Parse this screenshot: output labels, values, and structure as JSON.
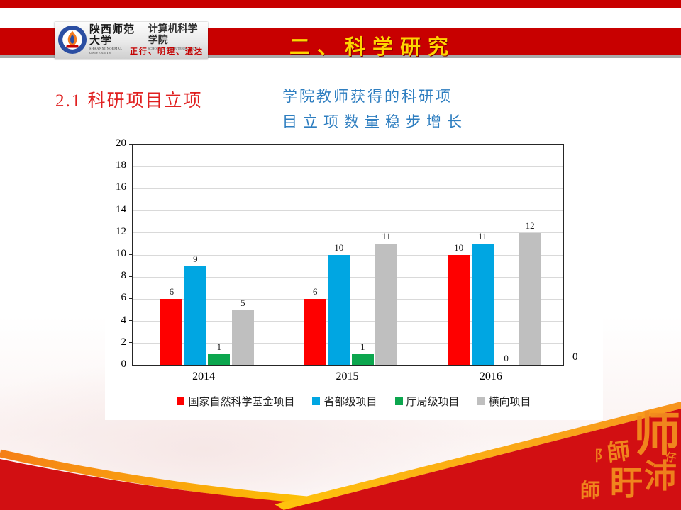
{
  "header": {
    "band_title": "二、科学研究",
    "logo": {
      "university_cn": "陕西师范大学",
      "university_en": "SHAANXI NORMAL UNIVERSITY",
      "school_cn": "计算机科学学院",
      "school_en": "SCHOOL OF COMPUTER SCIENCE",
      "motto": "正行、明理、通达"
    }
  },
  "body": {
    "section_title": "2.1 科研项目立项",
    "callout_line1": "学院教师获得的科研项",
    "callout_line2": "目立项数量稳步增长"
  },
  "chart_data": {
    "type": "bar",
    "categories": [
      "2014",
      "2015",
      "2016"
    ],
    "series": [
      {
        "name": "国家自然科学基金项目",
        "color": "#fe0000",
        "values": [
          6,
          6,
          10
        ]
      },
      {
        "name": "省部级项目",
        "color": "#00a6e2",
        "values": [
          9,
          10,
          11
        ]
      },
      {
        "name": "厅局级项目",
        "color": "#0ca64e",
        "values": [
          1,
          1,
          0
        ]
      },
      {
        "name": "横向项目",
        "color": "#bfbfbf",
        "values": [
          5,
          11,
          12
        ]
      }
    ],
    "title": "",
    "xlabel": "",
    "ylabel": "",
    "ylim": [
      0,
      20
    ],
    "ytick_step": 2,
    "grid": true,
    "data_labels": true,
    "legend_position": "bottom",
    "secondary_axis_zero": "0"
  },
  "footer": {
    "calligraphy_glyphs": [
      "师",
      "師",
      "沛",
      "盱",
      "師",
      "阝",
      "仔"
    ]
  },
  "colors": {
    "band_red": "#c80000",
    "footer_red": "#d20f12",
    "gold_orange": "#f7941e",
    "gold_yellow": "#ffd500",
    "title_yellow": "#ffd500",
    "section_red": "#e02020",
    "callout_blue": "#2e7ec0"
  }
}
